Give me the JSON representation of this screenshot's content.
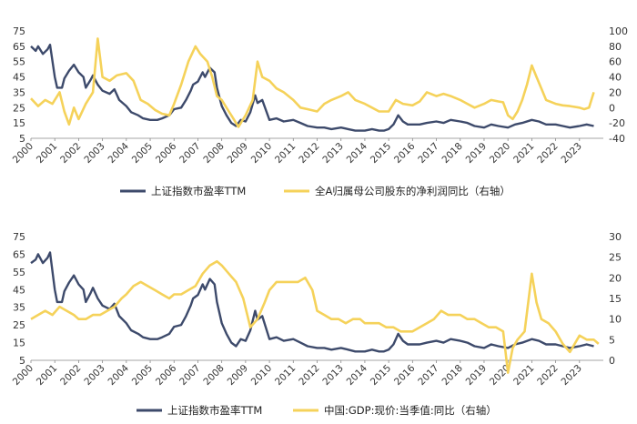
{
  "chart_data": [
    {
      "type": "line",
      "x_tick_labels": [
        "2000",
        "2001",
        "2002",
        "2003",
        "2004",
        "2005",
        "2006",
        "2007",
        "2008",
        "2009",
        "2010",
        "2011",
        "2012",
        "2013",
        "2014",
        "2015",
        "2016",
        "2017",
        "2018",
        "2019",
        "2020",
        "2021",
        "2022",
        "2023"
      ],
      "y_left_ticks": [
        "75",
        "65",
        "55",
        "45",
        "35",
        "25",
        "15",
        "5"
      ],
      "y_right_ticks": [
        "100",
        "80",
        "60",
        "40",
        "20",
        "0",
        "-20",
        "-40"
      ],
      "ylim_left": [
        5,
        75
      ],
      "ylim_right": [
        -40,
        100
      ],
      "xlim": [
        2000,
        2024
      ],
      "colors": {
        "left": "#3d4a6b",
        "right": "#f5d25a"
      },
      "series": [
        {
          "name": "上证指数市盈率TTM",
          "axis": "left",
          "x": [
            2000.0,
            2000.2,
            2000.3,
            2000.5,
            2000.7,
            2000.8,
            2001.0,
            2001.1,
            2001.3,
            2001.4,
            2001.6,
            2001.8,
            2002.0,
            2002.2,
            2002.3,
            2002.5,
            2002.6,
            2002.8,
            2003.0,
            2003.3,
            2003.5,
            2003.7,
            2004.0,
            2004.2,
            2004.5,
            2004.7,
            2005.0,
            2005.3,
            2005.5,
            2005.8,
            2006.0,
            2006.3,
            2006.5,
            2006.7,
            2006.8,
            2007.0,
            2007.2,
            2007.3,
            2007.5,
            2007.7,
            2007.8,
            2008.0,
            2008.2,
            2008.4,
            2008.6,
            2008.8,
            2009.0,
            2009.2,
            2009.4,
            2009.5,
            2009.7,
            2010.0,
            2010.3,
            2010.6,
            2011.0,
            2011.3,
            2011.6,
            2012.0,
            2012.3,
            2012.6,
            2013.0,
            2013.3,
            2013.6,
            2014.0,
            2014.3,
            2014.6,
            2014.8,
            2015.0,
            2015.2,
            2015.4,
            2015.6,
            2015.8,
            2016.0,
            2016.3,
            2016.6,
            2017.0,
            2017.3,
            2017.6,
            2018.0,
            2018.3,
            2018.6,
            2019.0,
            2019.3,
            2019.6,
            2020.0,
            2020.3,
            2020.6,
            2021.0,
            2021.3,
            2021.6,
            2022.0,
            2022.3,
            2022.6,
            2023.0,
            2023.3,
            2023.6
          ],
          "values": [
            65,
            62,
            65,
            60,
            63,
            66,
            45,
            38,
            38,
            44,
            49,
            53,
            48,
            45,
            38,
            43,
            46,
            40,
            36,
            34,
            37,
            30,
            26,
            22,
            20,
            18,
            17,
            17,
            18,
            20,
            24,
            25,
            30,
            36,
            40,
            42,
            48,
            45,
            51,
            48,
            38,
            26,
            20,
            15,
            13,
            17,
            16,
            22,
            33,
            28,
            30,
            17,
            18,
            16,
            17,
            15,
            13,
            12,
            12,
            11,
            12,
            11,
            10,
            10,
            11,
            10,
            10,
            11,
            14,
            20,
            16,
            14,
            14,
            14,
            15,
            16,
            15,
            17,
            16,
            15,
            13,
            12,
            14,
            13,
            12,
            14,
            15,
            17,
            16,
            14,
            14,
            13,
            12,
            13,
            14,
            13
          ]
        },
        {
          "name": "全A归属母公司股东的净利润同比（右轴）",
          "axis": "right",
          "x": [
            2000.0,
            2000.3,
            2000.6,
            2000.9,
            2001.2,
            2001.4,
            2001.6,
            2001.8,
            2002.0,
            2002.3,
            2002.6,
            2002.8,
            2003.0,
            2003.3,
            2003.6,
            2004.0,
            2004.3,
            2004.6,
            2004.9,
            2005.2,
            2005.5,
            2005.8,
            2006.0,
            2006.3,
            2006.6,
            2006.9,
            2007.1,
            2007.4,
            2007.6,
            2007.8,
            2008.0,
            2008.3,
            2008.5,
            2008.7,
            2009.0,
            2009.3,
            2009.5,
            2009.7,
            2010.0,
            2010.3,
            2010.6,
            2011.0,
            2011.3,
            2011.6,
            2012.0,
            2012.3,
            2012.6,
            2013.0,
            2013.3,
            2013.6,
            2014.0,
            2014.3,
            2014.6,
            2015.0,
            2015.3,
            2015.6,
            2016.0,
            2016.3,
            2016.6,
            2017.0,
            2017.3,
            2017.6,
            2018.0,
            2018.3,
            2018.6,
            2019.0,
            2019.3,
            2019.6,
            2019.8,
            2020.0,
            2020.2,
            2020.4,
            2020.6,
            2020.8,
            2021.0,
            2021.2,
            2021.4,
            2021.6,
            2022.0,
            2022.3,
            2022.6,
            2023.0,
            2023.2,
            2023.4,
            2023.6
          ],
          "values": [
            12,
            2,
            10,
            5,
            20,
            -5,
            -22,
            0,
            -15,
            5,
            20,
            90,
            40,
            35,
            42,
            45,
            35,
            10,
            5,
            -3,
            -8,
            -10,
            5,
            30,
            60,
            80,
            70,
            60,
            40,
            15,
            10,
            -5,
            -15,
            -25,
            -10,
            10,
            60,
            40,
            35,
            25,
            20,
            10,
            0,
            -2,
            -5,
            5,
            10,
            15,
            20,
            10,
            5,
            0,
            -5,
            -5,
            10,
            5,
            3,
            8,
            20,
            15,
            18,
            15,
            10,
            5,
            0,
            5,
            10,
            8,
            7,
            -10,
            -15,
            -5,
            10,
            30,
            55,
            40,
            25,
            10,
            5,
            3,
            2,
            0,
            -2,
            0,
            20
          ]
        }
      ]
    },
    {
      "type": "line",
      "x_tick_labels": [
        "2000",
        "2001",
        "2002",
        "2003",
        "2004",
        "2005",
        "2006",
        "2007",
        "2008",
        "2009",
        "2010",
        "2011",
        "2012",
        "2013",
        "2014",
        "2015",
        "2016",
        "2017",
        "2018",
        "2019",
        "2020",
        "2021",
        "2022",
        "2023"
      ],
      "y_left_ticks": [
        "75",
        "65",
        "55",
        "45",
        "35",
        "25",
        "15",
        "5"
      ],
      "y_right_ticks": [
        "30",
        "25",
        "20",
        "15",
        "10",
        "5",
        "0"
      ],
      "ylim_left": [
        5,
        75
      ],
      "ylim_right": [
        0,
        30
      ],
      "xlim": [
        2000,
        2024
      ],
      "colors": {
        "left": "#3d4a6b",
        "right": "#f5d25a"
      },
      "series": [
        {
          "name": "上证指数市盈率TTM",
          "axis": "left",
          "x": [
            2000.0,
            2000.2,
            2000.3,
            2000.5,
            2000.7,
            2000.8,
            2001.0,
            2001.1,
            2001.3,
            2001.4,
            2001.6,
            2001.8,
            2002.0,
            2002.2,
            2002.3,
            2002.5,
            2002.6,
            2002.8,
            2003.0,
            2003.3,
            2003.5,
            2003.7,
            2004.0,
            2004.2,
            2004.5,
            2004.7,
            2005.0,
            2005.3,
            2005.5,
            2005.8,
            2006.0,
            2006.3,
            2006.5,
            2006.7,
            2006.8,
            2007.0,
            2007.2,
            2007.3,
            2007.5,
            2007.7,
            2007.8,
            2008.0,
            2008.2,
            2008.4,
            2008.6,
            2008.8,
            2009.0,
            2009.2,
            2009.4,
            2009.5,
            2009.7,
            2010.0,
            2010.3,
            2010.6,
            2011.0,
            2011.3,
            2011.6,
            2012.0,
            2012.3,
            2012.6,
            2013.0,
            2013.3,
            2013.6,
            2014.0,
            2014.3,
            2014.6,
            2014.8,
            2015.0,
            2015.2,
            2015.4,
            2015.6,
            2015.8,
            2016.0,
            2016.3,
            2016.6,
            2017.0,
            2017.3,
            2017.6,
            2018.0,
            2018.3,
            2018.6,
            2019.0,
            2019.3,
            2019.6,
            2020.0,
            2020.3,
            2020.6,
            2021.0,
            2021.3,
            2021.6,
            2022.0,
            2022.3,
            2022.6,
            2023.0,
            2023.3,
            2023.6
          ],
          "values": [
            60,
            62,
            65,
            60,
            63,
            66,
            45,
            38,
            38,
            44,
            49,
            53,
            48,
            45,
            38,
            43,
            46,
            40,
            36,
            34,
            37,
            30,
            26,
            22,
            20,
            18,
            17,
            17,
            18,
            20,
            24,
            25,
            30,
            36,
            40,
            42,
            48,
            45,
            51,
            48,
            38,
            26,
            20,
            15,
            13,
            17,
            16,
            22,
            33,
            28,
            30,
            17,
            18,
            16,
            17,
            15,
            13,
            12,
            12,
            11,
            12,
            11,
            10,
            10,
            11,
            10,
            10,
            11,
            14,
            20,
            16,
            14,
            14,
            14,
            15,
            16,
            15,
            17,
            16,
            15,
            13,
            12,
            14,
            13,
            12,
            14,
            15,
            17,
            16,
            14,
            14,
            13,
            12,
            13,
            14,
            13
          ]
        },
        {
          "name": "中国:GDP:现价:当季值:同比（右轴）",
          "axis": "right",
          "x": [
            2000.0,
            2000.3,
            2000.6,
            2000.9,
            2001.2,
            2001.5,
            2001.8,
            2002.0,
            2002.3,
            2002.6,
            2002.9,
            2003.2,
            2003.5,
            2003.8,
            2004.0,
            2004.3,
            2004.6,
            2004.9,
            2005.2,
            2005.5,
            2005.8,
            2006.0,
            2006.3,
            2006.6,
            2006.9,
            2007.2,
            2007.5,
            2007.8,
            2008.0,
            2008.3,
            2008.6,
            2008.9,
            2009.2,
            2009.5,
            2009.8,
            2010.0,
            2010.3,
            2010.6,
            2010.9,
            2011.2,
            2011.5,
            2011.8,
            2012.0,
            2012.3,
            2012.6,
            2012.9,
            2013.2,
            2013.5,
            2013.8,
            2014.0,
            2014.3,
            2014.6,
            2014.9,
            2015.2,
            2015.5,
            2015.8,
            2016.0,
            2016.3,
            2016.6,
            2016.9,
            2017.2,
            2017.5,
            2017.8,
            2018.0,
            2018.3,
            2018.6,
            2018.9,
            2019.2,
            2019.5,
            2019.8,
            2020.0,
            2020.2,
            2020.4,
            2020.7,
            2021.0,
            2021.2,
            2021.4,
            2021.7,
            2022.0,
            2022.3,
            2022.6,
            2023.0,
            2023.3,
            2023.6,
            2023.8
          ],
          "values": [
            10,
            11,
            12,
            11,
            13,
            12,
            11,
            10,
            10,
            11,
            11,
            12,
            13,
            15,
            16,
            18,
            19,
            18,
            17,
            16,
            15,
            16,
            16,
            17,
            18,
            21,
            23,
            24,
            23,
            21,
            19,
            15,
            8,
            10,
            14,
            17,
            19,
            19,
            19,
            19,
            20,
            17,
            12,
            11,
            10,
            10,
            9,
            10,
            10,
            9,
            9,
            9,
            8,
            8,
            7,
            7,
            7,
            8,
            9,
            10,
            12,
            11,
            11,
            11,
            10,
            10,
            9,
            8,
            8,
            7,
            -3,
            3,
            5,
            7,
            21,
            14,
            10,
            9,
            7,
            4,
            2,
            6,
            5,
            5,
            4
          ]
        }
      ]
    }
  ]
}
